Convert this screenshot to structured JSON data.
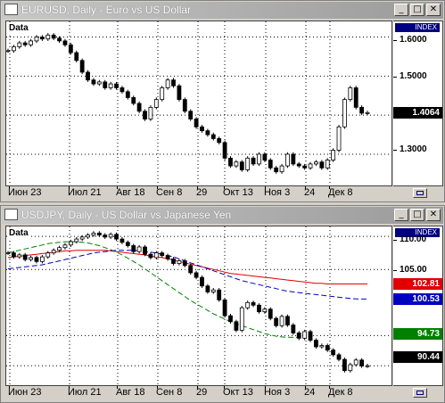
{
  "windows": [
    {
      "id": "eurusd",
      "title": "EURUSD, Daily - Euro vs US Dollar",
      "data_label": "Data",
      "scale_badge": "INDEX",
      "y_labels": [
        "1.6000",
        "1.5000",
        "1.4000",
        "1.3000"
      ],
      "current_price": {
        "label": "1.4064",
        "bg": "#000000",
        "fg": "#ffffff"
      },
      "x_labels": [
        "Июн 23",
        "Июл 21",
        "Авг 18",
        "Сен 8",
        "29",
        "Окт 13",
        "Ноя 3",
        "24",
        "Дек 8"
      ],
      "buttons": [
        "_",
        "□",
        "✕"
      ],
      "chart_data": {
        "type": "line",
        "series": [
          {
            "values": [
              1.565,
              1.575,
              1.585,
              1.58,
              1.59,
              1.6,
              1.595,
              1.605,
              1.597,
              1.59,
              1.58,
              1.56,
              1.54,
              1.51,
              1.49,
              1.48,
              1.485,
              1.47,
              1.48,
              1.47,
              1.46,
              1.445,
              1.43,
              1.41,
              1.39,
              1.42,
              1.44,
              1.47,
              1.49,
              1.475,
              1.44,
              1.41,
              1.39,
              1.37,
              1.36,
              1.35,
              1.34,
              1.33,
              1.29,
              1.27,
              1.28,
              1.26,
              1.29,
              1.275,
              1.3,
              1.285,
              1.265,
              1.255,
              1.27,
              1.3,
              1.275,
              1.27,
              1.265,
              1.275,
              1.28,
              1.265,
              1.285,
              1.31,
              1.37,
              1.44,
              1.47,
              1.42,
              1.405,
              1.4064
            ]
          }
        ],
        "ylim": [
          1.22,
          1.64
        ],
        "grid": true,
        "colors": {
          "candle_up": "#ffffff",
          "candle_down": "#000000",
          "grid": "#000000"
        }
      }
    },
    {
      "id": "usdjpy",
      "title": "USDJPY, Daily - US Dollar vs Japanese Yen",
      "data_label": "Data",
      "scale_badge": "INDEX",
      "y_labels": [
        "110.00",
        "105.00"
      ],
      "price_tags": [
        {
          "label": "102.81",
          "bg": "#e00000",
          "fg": "#ffffff",
          "value": 102.81
        },
        {
          "label": "100.53",
          "bg": "#0000c0",
          "fg": "#ffffff",
          "value": 100.53
        },
        {
          "label": "94.73",
          "bg": "#008000",
          "fg": "#ffffff",
          "value": 94.73
        },
        {
          "label": "90.44",
          "bg": "#000000",
          "fg": "#ffffff",
          "value": 90.44
        }
      ],
      "x_labels": [
        "Июн 23",
        "Июл 21",
        "Авг 18",
        "Сен 8",
        "29",
        "Окт 13",
        "Ноя 3",
        "24",
        "Дек 8"
      ],
      "buttons": [
        "_",
        "□",
        "✕"
      ],
      "chart_data": {
        "type": "line",
        "series": [
          {
            "values": [
              107.5,
              106.9,
              107.2,
              106.5,
              106.8,
              106.2,
              106.9,
              107.5,
              107.9,
              108.3,
              108.7,
              109.2,
              109.6,
              109.9,
              110.2,
              110.5,
              110.2,
              109.9,
              110.3,
              109.6,
              109.1,
              108.6,
              107.7,
              108.4,
              107.3,
              106.8,
              107.5,
              107.1,
              106.6,
              105.9,
              106.3,
              105.6,
              104.5,
              103.8,
              102.5,
              101.6,
              101.9,
              100.4,
              98.0,
              97.1,
              95.8,
              99.2,
              100.0,
              99.6,
              98.6,
              99.0,
              97.6,
              96.5,
              97.9,
              96.6,
              95.4,
              94.6,
              95.6,
              94.3,
              93.3,
              93.5,
              92.8,
              92.1,
              91.4,
              89.7,
              90.6,
              91.3,
              90.4,
              90.44
            ]
          },
          {
            "values": [
              106.8,
              106.9,
              107.0,
              107.1,
              107.2,
              107.3,
              107.4,
              107.5,
              107.6,
              107.7,
              107.8,
              107.8,
              107.9,
              107.9,
              107.9,
              107.9,
              107.9,
              107.9,
              107.8,
              107.7,
              107.6,
              107.5,
              107.4,
              107.3,
              107.2,
              107.0,
              106.9,
              106.8,
              106.6,
              106.4,
              106.2,
              106.0,
              105.8,
              105.6,
              105.4,
              105.2,
              105.0,
              104.8,
              104.6,
              104.4,
              104.3,
              104.2,
              104.1,
              104.0,
              103.9,
              103.8,
              103.7,
              103.6,
              103.5,
              103.4,
              103.3,
              103.2,
              103.1,
              103.0,
              102.9,
              102.9,
              102.8,
              102.8,
              102.8,
              102.8,
              102.8,
              102.8,
              102.8,
              102.81
            ]
          },
          {
            "values": [
              105.1,
              105.2,
              105.3,
              105.4,
              105.5,
              105.6,
              105.7,
              105.9,
              106.1,
              106.3,
              106.5,
              106.7,
              106.9,
              107.1,
              107.3,
              107.5,
              107.6,
              107.7,
              107.8,
              107.9,
              107.9,
              107.9,
              107.9,
              107.8,
              107.7,
              107.6,
              107.5,
              107.3,
              107.1,
              106.9,
              106.6,
              106.3,
              106.0,
              105.7,
              105.4,
              105.1,
              104.8,
              104.5,
              104.2,
              103.9,
              103.6,
              103.3,
              103.1,
              102.9,
              102.7,
              102.5,
              102.3,
              102.1,
              101.9,
              101.7,
              101.6,
              101.5,
              101.4,
              101.3,
              101.2,
              101.1,
              101.0,
              100.9,
              100.8,
              100.7,
              100.6,
              100.55,
              100.53,
              100.53
            ]
          },
          {
            "values": [
              107.5,
              107.7,
              107.9,
              108.1,
              108.3,
              108.5,
              108.7,
              108.9,
              109.0,
              109.1,
              109.2,
              109.2,
              109.2,
              109.1,
              109.0,
              108.8,
              108.6,
              108.3,
              108.0,
              107.6,
              107.2,
              106.7,
              106.2,
              105.7,
              105.1,
              104.5,
              103.9,
              103.3,
              102.7,
              102.1,
              101.5,
              100.9,
              100.3,
              99.8,
              99.3,
              98.8,
              98.3,
              97.9,
              97.5,
              97.1,
              96.8,
              96.5,
              96.2,
              95.9,
              95.6,
              95.3,
              95.1,
              94.9,
              94.8,
              94.75,
              94.73,
              94.73
            ]
          }
        ],
        "series_colors": [
          "#000000",
          "#e00000",
          "#0000c0",
          "#008000"
        ],
        "ylim": [
          87.5,
          111.5
        ],
        "grid": true
      }
    }
  ],
  "corner_icon": "chart-window-icon"
}
